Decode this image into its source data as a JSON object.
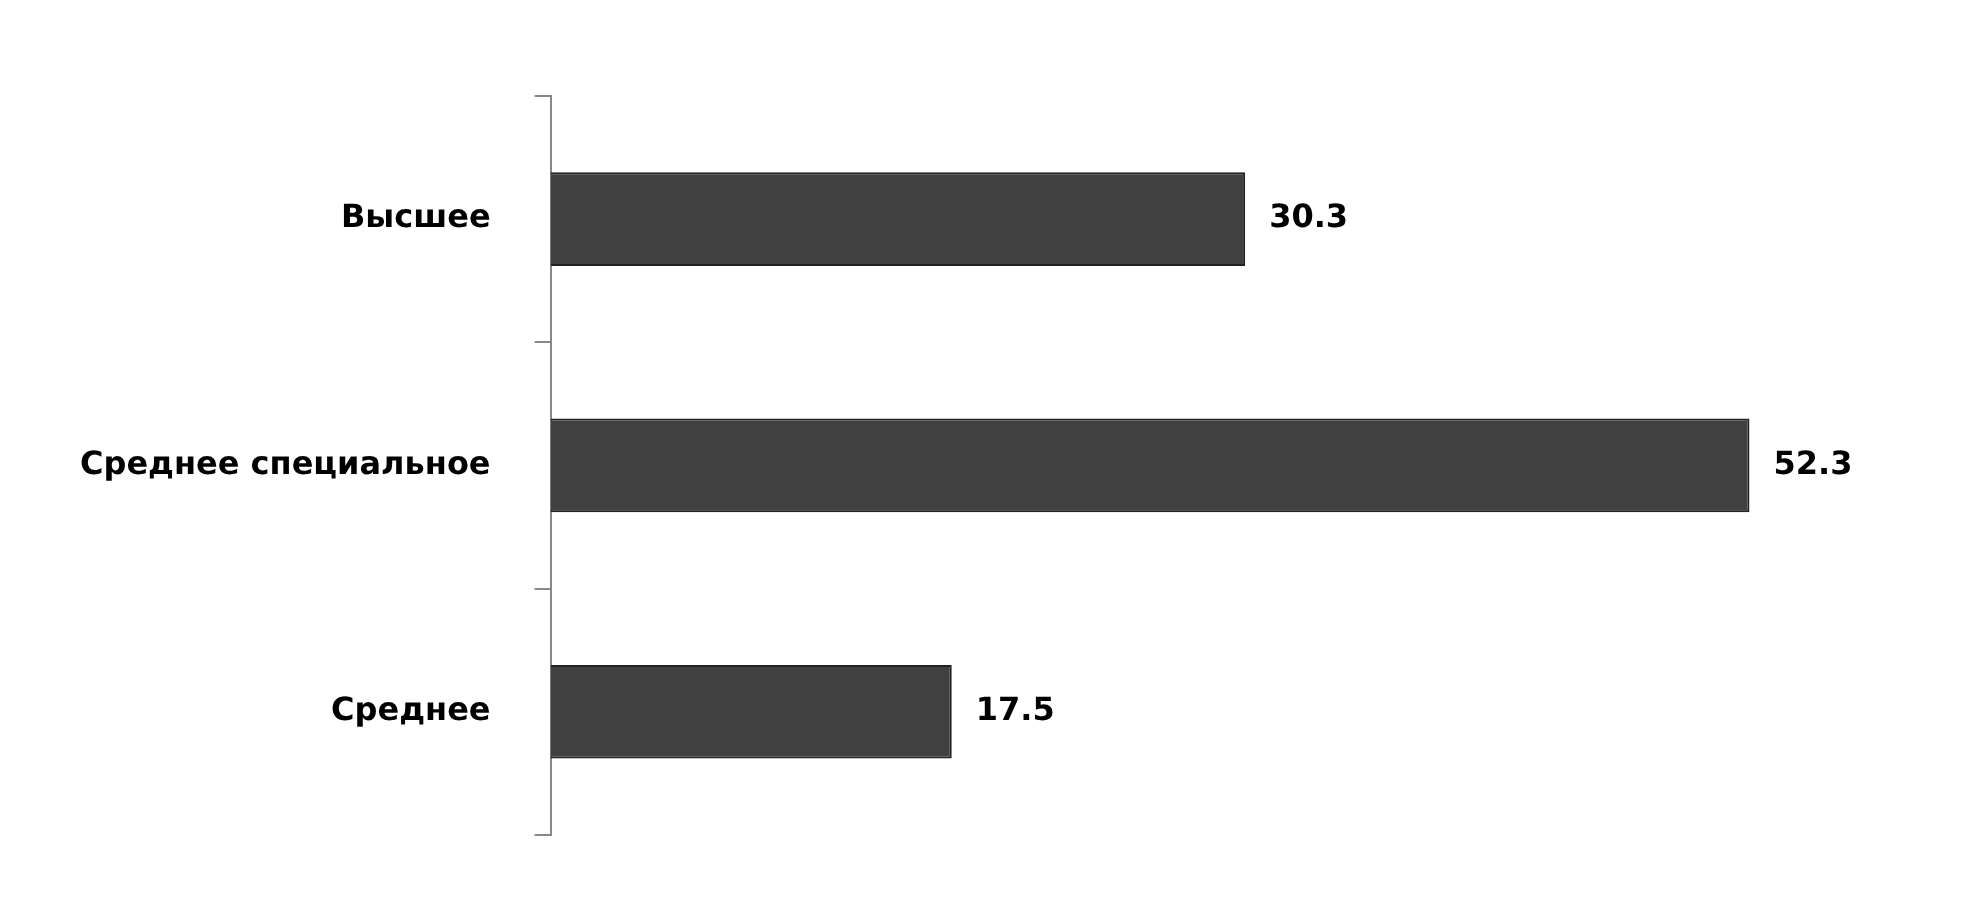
{
  "chart_data": {
    "type": "bar",
    "orientation": "horizontal",
    "categories": [
      "Высшее",
      "Среднее специальное",
      "Среднее"
    ],
    "values": [
      30.3,
      52.3,
      17.5
    ],
    "color": "#404040",
    "data_labels": true,
    "legend": false
  }
}
